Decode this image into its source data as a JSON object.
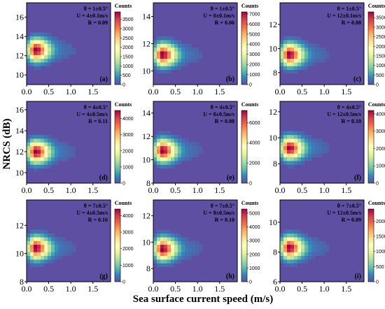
{
  "figure": {
    "xlabel": "Sea surface current speed (m/s)",
    "ylabel": "NRCS (dB)"
  },
  "chart_data": [
    {
      "type": "heatmap",
      "panel_label": "(a)",
      "colorbar_title": "Counts",
      "annotations": [
        "θ = 1±0.5°",
        "U = 4±0.1m/s",
        "R = 0.09"
      ],
      "xlim": [
        0,
        1.9
      ],
      "x_ticks": [
        0.0,
        0.5,
        1.0,
        1.5
      ],
      "ylim": [
        9,
        17.5
      ],
      "y_ticks": [
        10,
        12,
        14,
        16
      ],
      "clim": [
        0,
        3900
      ],
      "colorbar_ticks": [
        0,
        500,
        1000,
        1500,
        2000,
        2500,
        3000,
        3500
      ],
      "peak": {
        "x": 0.2,
        "y": 12.6,
        "count": 3900
      }
    },
    {
      "type": "heatmap",
      "panel_label": "(b)",
      "colorbar_title": "Counts",
      "annotations": [
        "θ = 1±0.5°",
        "U = 8±0.1m/s",
        "R = 0.06"
      ],
      "xlim": [
        0,
        1.9
      ],
      "x_ticks": [
        0.0,
        0.5,
        1.0,
        1.5
      ],
      "ylim": [
        9,
        15
      ],
      "y_ticks": [
        10,
        12,
        14
      ],
      "clim": [
        0,
        7200
      ],
      "colorbar_ticks": [
        0,
        1000,
        2000,
        3000,
        4000,
        5000,
        6000,
        7000
      ],
      "peak": {
        "x": 0.2,
        "y": 11.2,
        "count": 7200
      }
    },
    {
      "type": "heatmap",
      "panel_label": "(c)",
      "colorbar_title": "Counts",
      "annotations": [
        "θ = 1±0.5°",
        "U = 12±0.1m/s",
        "R = 0.08"
      ],
      "xlim": [
        0,
        1.9
      ],
      "x_ticks": [
        0.0,
        0.5,
        1.0,
        1.5
      ],
      "ylim": [
        7,
        13.8
      ],
      "y_ticks": [
        8,
        10,
        12
      ],
      "clim": [
        0,
        3800
      ],
      "colorbar_ticks": [
        0,
        500,
        1000,
        1500,
        2000,
        2500,
        3000,
        3500
      ],
      "peak": {
        "x": 0.2,
        "y": 9.5,
        "count": 3800
      }
    },
    {
      "type": "heatmap",
      "panel_label": "(d)",
      "colorbar_title": "Counts",
      "annotations": [
        "θ = 4±0.5°",
        "U = 4±0.5m/s",
        "R = 0.11"
      ],
      "xlim": [
        0,
        1.9
      ],
      "x_ticks": [
        0.0,
        0.5,
        1.0,
        1.5
      ],
      "ylim": [
        9,
        16.8
      ],
      "y_ticks": [
        10,
        12,
        14,
        16
      ],
      "clim": [
        0,
        4500
      ],
      "colorbar_ticks": [
        0,
        1000,
        2000,
        3000,
        4000
      ],
      "peak": {
        "x": 0.2,
        "y": 12.0,
        "count": 4500
      }
    },
    {
      "type": "heatmap",
      "panel_label": "(e)",
      "colorbar_title": "Counts",
      "annotations": [
        "θ = 4±0.5°",
        "U = 8±0.5m/s",
        "R = 0.08"
      ],
      "xlim": [
        0,
        1.9
      ],
      "x_ticks": [
        0.0,
        0.5,
        1.0,
        1.5
      ],
      "ylim": [
        8,
        15
      ],
      "y_ticks": [
        8,
        10,
        12,
        14
      ],
      "clim": [
        0,
        7200
      ],
      "colorbar_ticks": [
        0,
        2000,
        4000,
        6000
      ],
      "peak": {
        "x": 0.2,
        "y": 10.8,
        "count": 7200
      }
    },
    {
      "type": "heatmap",
      "panel_label": "(f)",
      "colorbar_title": "Counts",
      "annotations": [
        "θ = 4±0.5°",
        "U = 12±0.5m/s",
        "R = 0.10"
      ],
      "xlim": [
        0,
        1.9
      ],
      "x_ticks": [
        0.0,
        0.5,
        1.0,
        1.5
      ],
      "ylim": [
        6.5,
        12.8
      ],
      "y_ticks": [
        8,
        10,
        12
      ],
      "clim": [
        0,
        4200
      ],
      "colorbar_ticks": [
        0,
        1000,
        2000,
        3000,
        4000
      ],
      "peak": {
        "x": 0.2,
        "y": 9.2,
        "count": 4200
      }
    },
    {
      "type": "heatmap",
      "panel_label": "(g)",
      "colorbar_title": "Counts",
      "annotations": [
        "θ = 7±0.5°",
        "U = 4±0.5m/s",
        "R = 0.16"
      ],
      "xlim": [
        0,
        1.9
      ],
      "x_ticks": [
        0.0,
        0.5,
        1.0,
        1.5
      ],
      "ylim": [
        8,
        13.8
      ],
      "y_ticks": [
        8,
        10,
        12
      ],
      "clim": [
        0,
        4400
      ],
      "colorbar_ticks": [
        0,
        1000,
        2000,
        3000,
        4000
      ],
      "peak": {
        "x": 0.2,
        "y": 10.4,
        "count": 4400
      }
    },
    {
      "type": "heatmap",
      "panel_label": "(h)",
      "colorbar_title": "Counts",
      "annotations": [
        "θ = 7±0.5°",
        "U = 8±0.5m/s",
        "R = 0.10"
      ],
      "xlim": [
        0,
        1.9
      ],
      "x_ticks": [
        0.0,
        0.5,
        1.0,
        1.5
      ],
      "ylim": [
        7,
        13.2
      ],
      "y_ticks": [
        8,
        10,
        12
      ],
      "clim": [
        0,
        5300
      ],
      "colorbar_ticks": [
        0,
        1000,
        2000,
        3000,
        4000,
        5000
      ],
      "peak": {
        "x": 0.2,
        "y": 9.5,
        "count": 5300
      }
    },
    {
      "type": "heatmap",
      "panel_label": "(i)",
      "colorbar_title": "Counts",
      "annotations": [
        "θ = 7±0.5°",
        "U = 12±0.5m/s",
        "R = 0.09"
      ],
      "xlim": [
        0,
        1.9
      ],
      "x_ticks": [
        0.0,
        0.5,
        1.0,
        1.5
      ],
      "ylim": [
        6,
        11.5
      ],
      "y_ticks": [
        6,
        8,
        10
      ],
      "clim": [
        0,
        2400
      ],
      "colorbar_ticks": [
        0,
        500,
        1000,
        1500,
        2000
      ],
      "peak": {
        "x": 0.2,
        "y": 8.3,
        "count": 2400
      }
    }
  ]
}
